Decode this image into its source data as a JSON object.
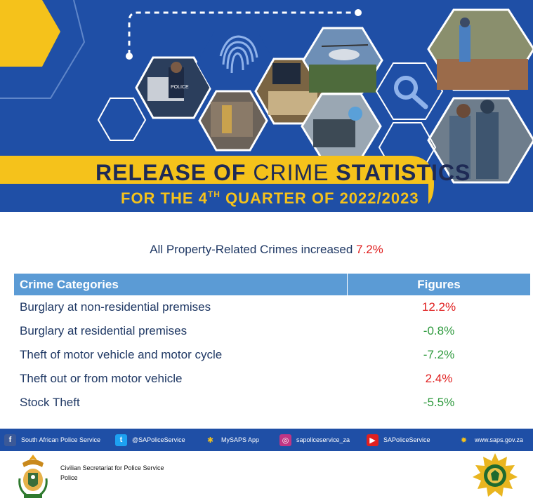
{
  "banner": {
    "title_bold_1": "RELEASE OF",
    "title_light": " CRIME ",
    "title_bold_2": "STATISTICS",
    "subtitle_pre": "FOR THE 4",
    "subtitle_sup": "TH",
    "subtitle_post": " QUARTER OF 2022/2023",
    "police_vest_text": "POLICE"
  },
  "headline": {
    "text": "All Property-Related  Crimes  increased ",
    "value": "7.2%"
  },
  "table": {
    "headers": [
      "Crime Categories",
      "Figures"
    ],
    "rows": [
      {
        "category": "Burglary at non-residential premises",
        "figure": "12.2%",
        "trend": "up"
      },
      {
        "category": "Burglary at residential premises",
        "figure": "-0.8%",
        "trend": "down"
      },
      {
        "category": "Theft of motor vehicle and motor cycle",
        "figure": "-7.2%",
        "trend": "down"
      },
      {
        "category": "Theft out or from motor vehicle",
        "figure": "2.4%",
        "trend": "up"
      },
      {
        "category": "Stock Theft",
        "figure": "-5.5%",
        "trend": "down"
      }
    ]
  },
  "social": [
    {
      "icon": "facebook-icon",
      "glyph": "f",
      "color": "#3b5998",
      "label": "South African Police Service"
    },
    {
      "icon": "twitter-icon",
      "glyph": "t",
      "color": "#1da1f2",
      "label": "@SAPoliceService"
    },
    {
      "icon": "mysaps-app-icon",
      "glyph": "✱",
      "color": "#1f4fa6",
      "label": "MySAPS App"
    },
    {
      "icon": "instagram-icon",
      "glyph": "◎",
      "color": "#c13584",
      "label": "sapoliceservice_za"
    },
    {
      "icon": "youtube-icon",
      "glyph": "▶",
      "color": "#e02020",
      "label": "SAPoliceService"
    },
    {
      "icon": "saps-website-icon",
      "glyph": "✹",
      "color": "#1f4fa6",
      "label": "www.saps.gov.za"
    }
  ],
  "footer": {
    "line1": "Civilian Secretariat for Police Service",
    "line2": "Police"
  },
  "colors": {
    "brand_blue": "#1f4fa6",
    "accent_yellow": "#f5c21b",
    "table_header": "#5b9bd5",
    "increase": "#e02020",
    "decrease": "#2f9a3e"
  }
}
